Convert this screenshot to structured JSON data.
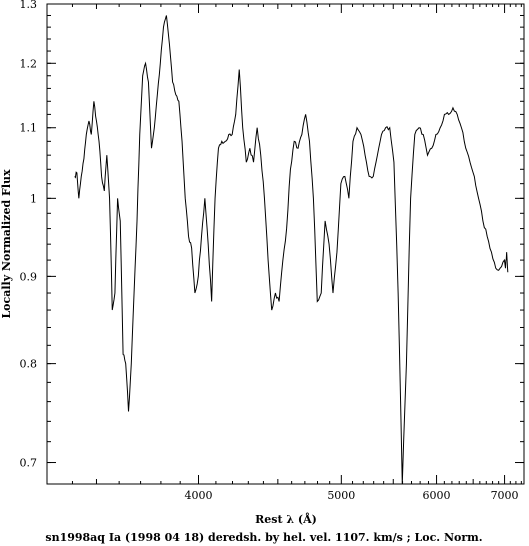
{
  "chart_data": {
    "type": "line",
    "xlabel": "Rest λ (Å)",
    "ylabel": "Locally Normalized Flux",
    "caption": "sn1998aq Ia (1998 04 18) deredsh. by hel. vel.  1107. km/s ;  Loc. Norm.",
    "x_scale": "reciprocal",
    "y_scale": "log",
    "xlim": [
      3300,
      7350
    ],
    "ylim": [
      0.68,
      1.3
    ],
    "xticks_major": [
      4000,
      5000,
      6000,
      7000
    ],
    "xticks_minor": [
      3500,
      4500,
      5500,
      6500
    ],
    "yticks_major": [
      0.7,
      0.8,
      0.9,
      1.0,
      1.1,
      1.2,
      1.3
    ],
    "ytick_labels": [
      "0.7",
      "0.8",
      "0.9",
      "1",
      "1.1",
      "1.2",
      "1.3"
    ],
    "grid": false,
    "series": [
      {
        "color": "#000000",
        "x": [
          3409,
          3418,
          3426,
          3436,
          3447,
          3457,
          3468,
          3478,
          3489,
          3500,
          3511,
          3522,
          3534,
          3545,
          3557,
          3569,
          3581,
          3593,
          3605,
          3618,
          3630,
          3643,
          3656,
          3669,
          3683,
          3696,
          3710,
          3724,
          3738,
          3753,
          3767,
          3782,
          3797,
          3813,
          3828,
          3844,
          3860,
          3877,
          3893,
          3910,
          3927,
          3945,
          3962,
          3980,
          3999,
          4017,
          4036,
          4055,
          4075,
          4095,
          4115,
          4135,
          4156,
          4177,
          4198,
          4220,
          4242,
          4264,
          4287,
          4310,
          4334,
          4358,
          4382,
          4407,
          4432,
          4457,
          4483,
          4509,
          4536,
          4563,
          4591,
          4619,
          4648,
          4677,
          4706,
          4736,
          4767,
          4798,
          4830,
          4862,
          4895,
          4928,
          4962,
          4996,
          5031,
          5067,
          5104,
          5141,
          5178,
          5217,
          5256,
          5296,
          5337,
          5378,
          5420,
          5463,
          5507,
          5552,
          5597,
          5643,
          5690,
          5738,
          5787,
          5837,
          5888,
          5940,
          5992,
          6046,
          6101,
          6157,
          6214,
          6272,
          6331,
          6392,
          6454,
          6517,
          6581,
          6647,
          6714,
          6782,
          6852,
          6924,
          6997,
          7016,
          7036,
          7056
        ],
        "y": [
          1.03,
          1.035,
          1.0,
          1.03,
          1.055,
          1.09,
          1.11,
          1.09,
          1.14,
          1.11,
          1.08,
          1.03,
          1.01,
          1.06,
          1.0,
          0.86,
          0.88,
          1.0,
          0.97,
          0.81,
          0.8,
          0.75,
          0.8,
          0.88,
          0.97,
          1.09,
          1.18,
          1.2,
          1.17,
          1.07,
          1.1,
          1.15,
          1.2,
          1.26,
          1.28,
          1.23,
          1.17,
          1.15,
          1.14,
          1.08,
          1.0,
          0.95,
          0.935,
          0.88,
          0.9,
          0.95,
          1.0,
          0.94,
          0.87,
          1.0,
          1.07,
          1.08,
          1.08,
          1.09,
          1.09,
          1.12,
          1.19,
          1.1,
          1.05,
          1.07,
          1.05,
          1.1,
          1.06,
          1.0,
          0.92,
          0.86,
          0.88,
          0.87,
          0.92,
          0.96,
          1.04,
          1.08,
          1.07,
          1.09,
          1.12,
          1.08,
          1.0,
          0.87,
          0.88,
          0.97,
          0.94,
          0.88,
          0.93,
          1.02,
          1.03,
          1.0,
          1.08,
          1.1,
          1.09,
          1.06,
          1.03,
          1.03,
          1.06,
          1.09,
          1.1,
          1.1,
          1.05,
          0.88,
          0.68,
          0.8,
          1.0,
          1.09,
          1.1,
          1.09,
          1.06,
          1.07,
          1.09,
          1.1,
          1.12,
          1.12,
          1.13,
          1.12,
          1.1,
          1.07,
          1.05,
          1.03,
          1.0,
          0.97,
          0.95,
          0.93,
          0.91,
          0.91,
          0.92,
          0.91,
          0.93,
          0.905
        ]
      }
    ]
  }
}
